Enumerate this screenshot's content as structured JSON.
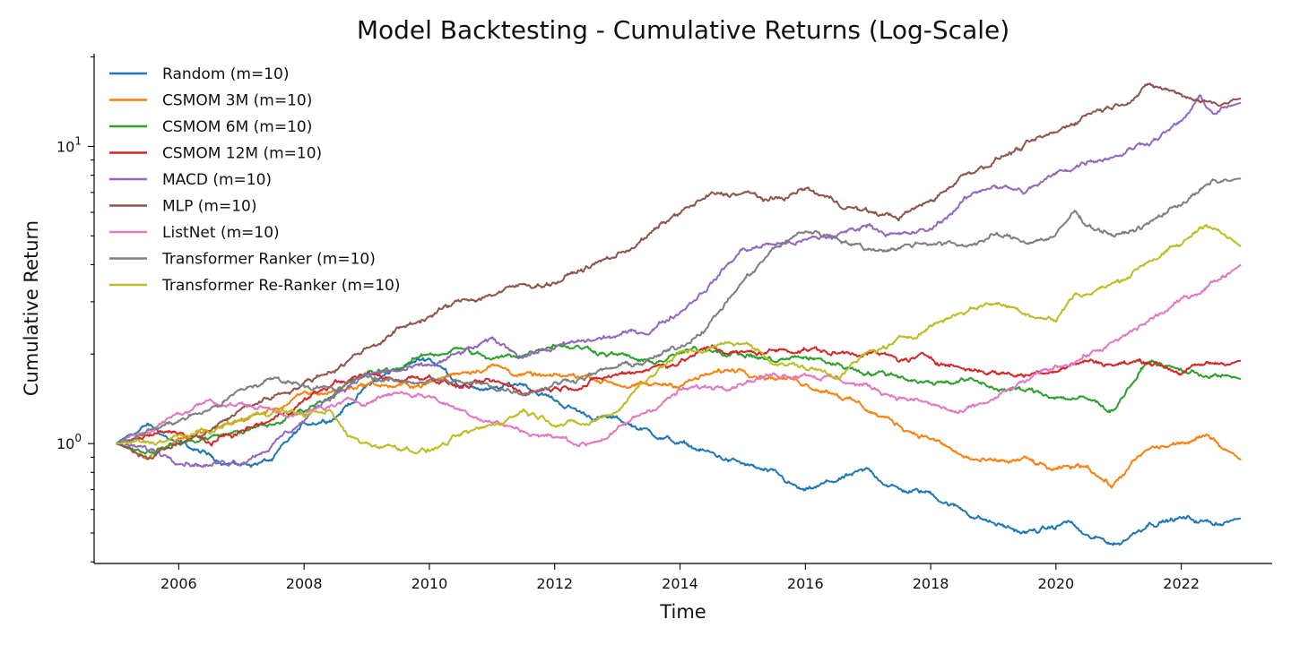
{
  "chart_data": {
    "type": "line",
    "title": "Model Backtesting - Cumulative Returns (Log-Scale)",
    "xlabel": "Time",
    "ylabel": "Cumulative Return",
    "yscale": "log",
    "xlim": [
      2004.65,
      2023.45
    ],
    "ylim": [
      0.395,
      20.5
    ],
    "x_ticks": [
      2006,
      2008,
      2010,
      2012,
      2014,
      2016,
      2018,
      2020,
      2022
    ],
    "x_tick_labels": [
      "2006",
      "2008",
      "2010",
      "2012",
      "2014",
      "2016",
      "2018",
      "2020",
      "2022"
    ],
    "y_ticks": [
      {
        "value": 1,
        "base": "10",
        "exp": "0"
      },
      {
        "value": 10,
        "base": "10",
        "exp": "1"
      }
    ],
    "y_minor_ticks": [
      0.4,
      0.5,
      0.6,
      0.7,
      0.8,
      0.9,
      2,
      3,
      4,
      5,
      6,
      7,
      8,
      9,
      20
    ],
    "legend": "top-left",
    "grid": false,
    "series": [
      {
        "name": "Random (m=10)",
        "color": "#1f77b4",
        "x": [
          2005.0,
          2005.5,
          2006.0,
          2006.5,
          2007.0,
          2007.5,
          2008.0,
          2008.5,
          2009.0,
          2009.5,
          2010.0,
          2010.5,
          2011.0,
          2011.5,
          2012.0,
          2012.5,
          2013.0,
          2013.5,
          2014.0,
          2014.5,
          2015.0,
          2015.5,
          2016.0,
          2016.5,
          2017.0,
          2017.5,
          2018.0,
          2018.5,
          2019.0,
          2019.5,
          2020.0,
          2020.2,
          2020.5,
          2021.0,
          2021.5,
          2022.0,
          2022.5,
          2022.95
        ],
        "y": [
          1.0,
          1.15,
          1.0,
          0.9,
          0.85,
          0.88,
          1.15,
          1.25,
          1.55,
          1.8,
          1.95,
          1.6,
          1.5,
          1.6,
          1.4,
          1.25,
          1.2,
          1.1,
          1.0,
          0.92,
          0.85,
          0.78,
          0.68,
          0.75,
          0.8,
          0.7,
          0.68,
          0.6,
          0.54,
          0.5,
          0.52,
          0.55,
          0.48,
          0.46,
          0.55,
          0.56,
          0.54,
          0.56
        ]
      },
      {
        "name": "CSMOM 3M (m=10)",
        "color": "#ff7f0e",
        "x": [
          2005.0,
          2005.5,
          2006.0,
          2006.5,
          2007.0,
          2007.5,
          2008.0,
          2008.5,
          2009.0,
          2009.5,
          2010.0,
          2010.5,
          2011.0,
          2011.5,
          2012.0,
          2012.5,
          2013.0,
          2013.5,
          2014.0,
          2014.5,
          2015.0,
          2015.5,
          2016.0,
          2016.5,
          2017.0,
          2017.5,
          2018.0,
          2018.5,
          2019.0,
          2019.5,
          2020.0,
          2020.5,
          2020.9,
          2021.2,
          2021.5,
          2022.0,
          2022.5,
          2022.95
        ],
        "y": [
          1.0,
          0.92,
          1.05,
          1.1,
          1.2,
          1.3,
          1.45,
          1.5,
          1.6,
          1.55,
          1.6,
          1.75,
          1.85,
          1.7,
          1.65,
          1.7,
          1.6,
          1.55,
          1.6,
          1.7,
          1.8,
          1.7,
          1.6,
          1.5,
          1.3,
          1.15,
          1.05,
          0.9,
          0.85,
          0.88,
          0.8,
          0.85,
          0.72,
          0.85,
          0.95,
          1.0,
          1.05,
          0.88
        ]
      },
      {
        "name": "CSMOM 6M (m=10)",
        "color": "#2ca02c",
        "x": [
          2005.0,
          2005.5,
          2006.0,
          2006.5,
          2007.0,
          2007.5,
          2008.0,
          2008.5,
          2009.0,
          2009.5,
          2010.0,
          2010.5,
          2011.0,
          2011.5,
          2012.0,
          2012.5,
          2013.0,
          2013.5,
          2014.0,
          2014.5,
          2015.0,
          2015.5,
          2016.0,
          2016.5,
          2017.0,
          2017.5,
          2018.0,
          2018.5,
          2019.0,
          2019.5,
          2020.0,
          2020.5,
          2020.9,
          2021.2,
          2021.5,
          2022.0,
          2022.5,
          2022.95
        ],
        "y": [
          1.0,
          0.95,
          1.0,
          1.05,
          1.1,
          1.15,
          1.3,
          1.5,
          1.7,
          1.8,
          2.0,
          2.1,
          1.9,
          2.0,
          2.2,
          2.1,
          2.0,
          1.85,
          2.0,
          2.1,
          2.0,
          1.9,
          1.95,
          1.85,
          1.75,
          1.7,
          1.6,
          1.65,
          1.55,
          1.5,
          1.45,
          1.4,
          1.3,
          1.6,
          1.9,
          1.75,
          1.7,
          1.65
        ]
      },
      {
        "name": "CSMOM 12M (m=10)",
        "color": "#d62728",
        "x": [
          2005.0,
          2005.5,
          2006.0,
          2006.5,
          2007.0,
          2007.5,
          2008.0,
          2008.5,
          2009.0,
          2009.5,
          2010.0,
          2010.5,
          2011.0,
          2011.5,
          2012.0,
          2012.5,
          2013.0,
          2013.5,
          2014.0,
          2014.5,
          2015.0,
          2015.5,
          2016.0,
          2016.5,
          2017.0,
          2017.5,
          2018.0,
          2018.5,
          2019.0,
          2019.5,
          2020.0,
          2020.5,
          2021.0,
          2021.5,
          2022.0,
          2022.5,
          2022.95
        ],
        "y": [
          1.0,
          1.05,
          1.1,
          1.0,
          1.1,
          1.2,
          1.4,
          1.6,
          1.7,
          1.65,
          1.7,
          1.55,
          1.6,
          1.5,
          1.55,
          1.6,
          1.7,
          1.8,
          1.9,
          2.1,
          2.0,
          2.05,
          2.1,
          2.0,
          2.05,
          1.9,
          1.95,
          1.8,
          1.75,
          1.7,
          1.8,
          1.9,
          1.85,
          1.9,
          1.75,
          1.85,
          1.9
        ]
      },
      {
        "name": "MACD (m=10)",
        "color": "#9467bd",
        "x": [
          2005.0,
          2005.5,
          2006.0,
          2006.5,
          2007.0,
          2007.5,
          2008.0,
          2008.5,
          2009.0,
          2009.5,
          2010.0,
          2010.5,
          2011.0,
          2011.5,
          2012.0,
          2012.5,
          2013.0,
          2013.5,
          2014.0,
          2014.5,
          2015.0,
          2015.5,
          2016.0,
          2016.5,
          2017.0,
          2017.5,
          2018.0,
          2018.5,
          2019.0,
          2019.5,
          2020.0,
          2020.5,
          2021.0,
          2021.5,
          2022.0,
          2022.3,
          2022.5,
          2022.95
        ],
        "y": [
          1.0,
          0.95,
          0.9,
          0.85,
          0.88,
          1.0,
          1.2,
          1.5,
          1.7,
          1.75,
          1.8,
          2.0,
          2.2,
          2.0,
          2.1,
          2.2,
          2.3,
          2.4,
          2.8,
          3.5,
          4.5,
          4.7,
          4.8,
          5.0,
          5.5,
          5.0,
          5.2,
          6.5,
          7.5,
          7.0,
          8.0,
          9.0,
          9.5,
          10.5,
          12.0,
          14.5,
          13.0,
          14.0
        ]
      },
      {
        "name": "MLP (m=10)",
        "color": "#8c564b",
        "x": [
          2005.0,
          2005.5,
          2006.0,
          2006.5,
          2007.0,
          2007.5,
          2008.0,
          2008.5,
          2009.0,
          2009.5,
          2010.0,
          2010.5,
          2011.0,
          2011.5,
          2012.0,
          2012.5,
          2013.0,
          2013.5,
          2014.0,
          2014.5,
          2015.0,
          2015.5,
          2016.0,
          2016.5,
          2017.0,
          2017.5,
          2018.0,
          2018.5,
          2019.0,
          2019.5,
          2020.0,
          2020.5,
          2021.0,
          2021.5,
          2022.0,
          2022.5,
          2022.95
        ],
        "y": [
          1.0,
          0.92,
          1.0,
          1.1,
          1.3,
          1.45,
          1.6,
          1.8,
          2.1,
          2.4,
          2.7,
          3.0,
          3.2,
          3.4,
          3.5,
          3.9,
          4.3,
          5.0,
          6.0,
          6.8,
          7.0,
          6.5,
          7.2,
          6.5,
          6.0,
          5.8,
          6.5,
          8.0,
          9.0,
          10.0,
          11.0,
          13.0,
          14.0,
          16.0,
          15.0,
          14.0,
          14.5
        ]
      },
      {
        "name": "ListNet (m=10)",
        "color": "#e377c2",
        "x": [
          2005.0,
          2005.5,
          2006.0,
          2006.5,
          2007.0,
          2007.5,
          2008.0,
          2008.5,
          2009.0,
          2009.5,
          2010.0,
          2010.5,
          2011.0,
          2011.5,
          2012.0,
          2012.5,
          2013.0,
          2013.5,
          2014.0,
          2014.5,
          2015.0,
          2015.5,
          2016.0,
          2016.5,
          2017.0,
          2017.5,
          2018.0,
          2018.5,
          2019.0,
          2019.5,
          2020.0,
          2020.5,
          2021.0,
          2021.5,
          2022.0,
          2022.5,
          2022.95
        ],
        "y": [
          1.0,
          1.1,
          1.25,
          1.4,
          1.35,
          1.3,
          1.25,
          1.35,
          1.4,
          1.5,
          1.45,
          1.3,
          1.2,
          1.1,
          1.05,
          1.0,
          1.1,
          1.3,
          1.5,
          1.55,
          1.65,
          1.7,
          1.75,
          1.65,
          1.55,
          1.45,
          1.35,
          1.25,
          1.4,
          1.6,
          1.8,
          2.0,
          2.2,
          2.6,
          3.0,
          3.5,
          4.0
        ]
      },
      {
        "name": "Transformer Ranker (m=10)",
        "color": "#7f7f7f",
        "x": [
          2005.0,
          2005.5,
          2006.0,
          2006.5,
          2007.0,
          2007.5,
          2008.0,
          2008.5,
          2009.0,
          2009.5,
          2010.0,
          2010.5,
          2011.0,
          2011.5,
          2012.0,
          2012.5,
          2013.0,
          2013.5,
          2014.0,
          2014.5,
          2015.0,
          2015.5,
          2016.0,
          2016.5,
          2017.0,
          2017.5,
          2018.0,
          2018.5,
          2019.0,
          2019.5,
          2020.0,
          2020.3,
          2020.5,
          2021.0,
          2021.5,
          2022.0,
          2022.5,
          2022.95
        ],
        "y": [
          1.0,
          1.1,
          1.2,
          1.3,
          1.5,
          1.65,
          1.6,
          1.5,
          1.7,
          1.6,
          1.65,
          1.6,
          1.55,
          1.5,
          1.6,
          1.7,
          1.8,
          1.9,
          2.1,
          2.6,
          3.5,
          4.5,
          5.2,
          5.0,
          4.5,
          4.6,
          4.8,
          4.6,
          5.0,
          4.8,
          5.0,
          6.0,
          5.5,
          5.0,
          5.5,
          6.5,
          7.5,
          7.8
        ]
      },
      {
        "name": "Transformer Re-Ranker (m=10)",
        "color": "#bcbd22",
        "x": [
          2005.0,
          2005.5,
          2006.0,
          2006.5,
          2007.0,
          2007.5,
          2008.0,
          2008.4,
          2008.7,
          2009.0,
          2009.5,
          2010.0,
          2010.5,
          2011.0,
          2011.5,
          2012.0,
          2012.5,
          2013.0,
          2013.5,
          2014.0,
          2014.5,
          2015.0,
          2015.5,
          2016.0,
          2016.5,
          2017.0,
          2017.5,
          2018.0,
          2018.5,
          2019.0,
          2019.5,
          2020.0,
          2020.3,
          2020.5,
          2021.0,
          2021.5,
          2022.0,
          2022.4,
          2022.7,
          2022.95
        ],
        "y": [
          1.0,
          1.0,
          1.05,
          1.1,
          1.2,
          1.3,
          1.25,
          1.3,
          1.05,
          1.0,
          0.98,
          0.95,
          1.05,
          1.15,
          1.3,
          1.2,
          1.15,
          1.3,
          1.7,
          2.0,
          2.1,
          2.2,
          1.9,
          1.8,
          1.7,
          2.0,
          2.2,
          2.5,
          2.8,
          3.0,
          2.8,
          2.6,
          3.2,
          3.2,
          3.5,
          4.2,
          4.6,
          5.6,
          5.0,
          4.6
        ]
      }
    ]
  }
}
